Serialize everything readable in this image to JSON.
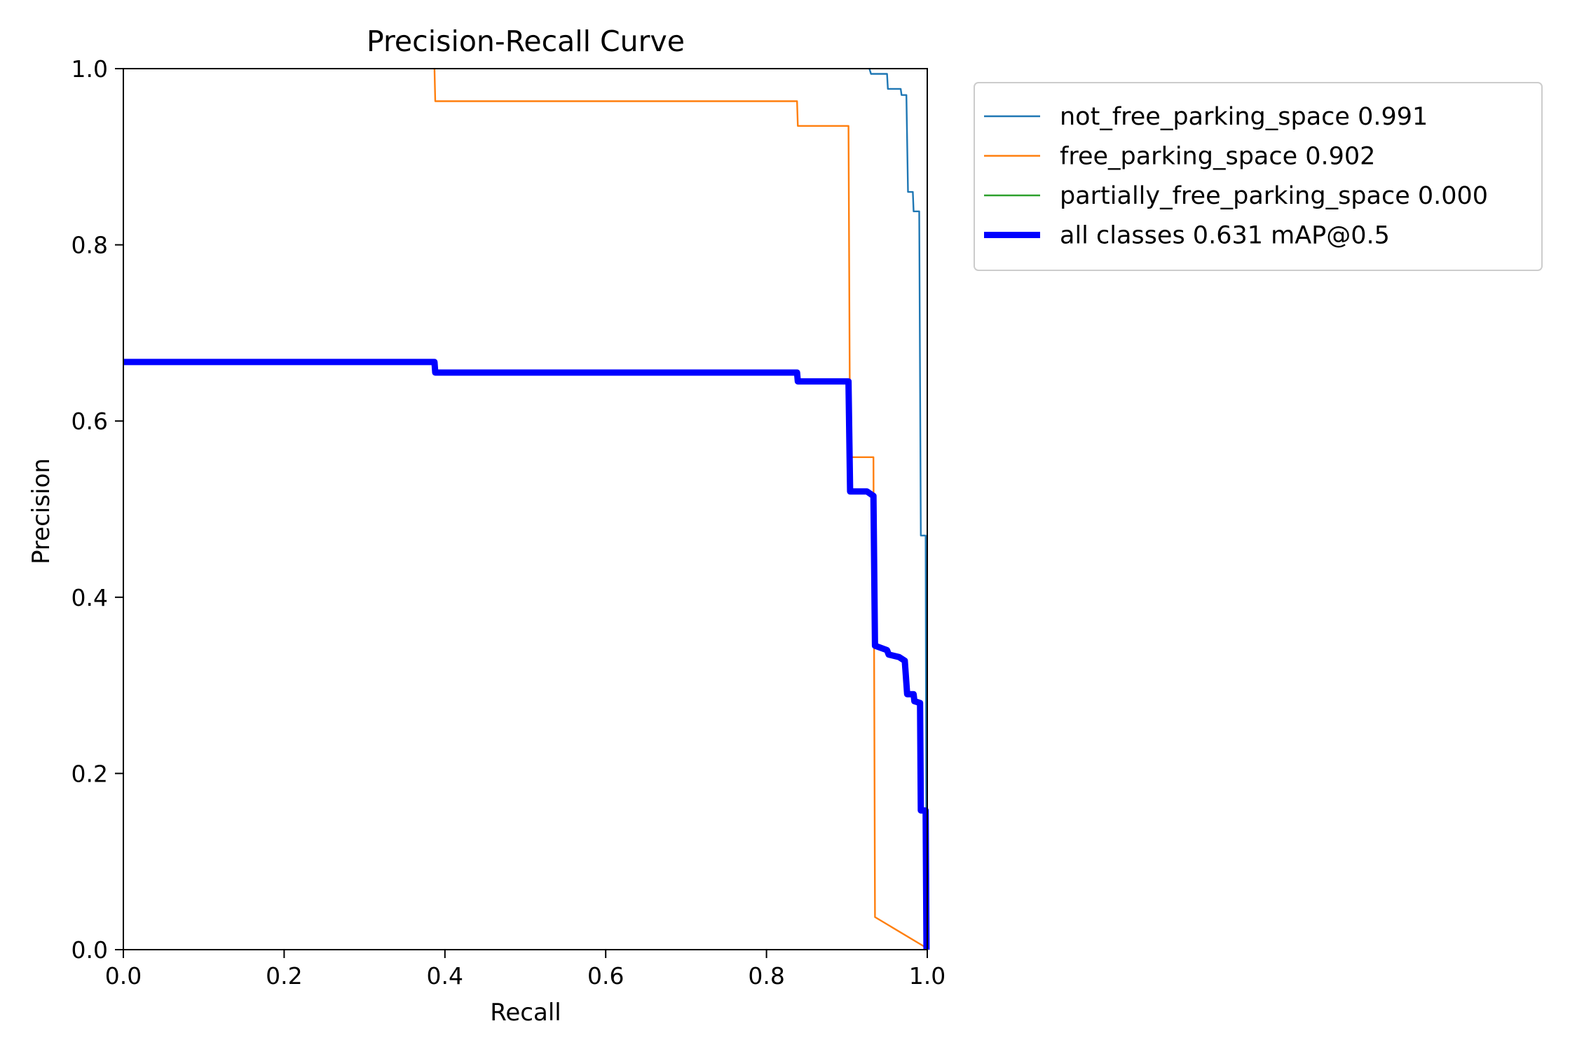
{
  "chart_data": {
    "type": "line",
    "title": "Precision-Recall Curve",
    "xlabel": "Recall",
    "ylabel": "Precision",
    "xlim": [
      0,
      1
    ],
    "ylim": [
      0,
      1
    ],
    "xticks": [
      "0.0",
      "0.2",
      "0.4",
      "0.6",
      "0.8",
      "1.0"
    ],
    "yticks": [
      "0.0",
      "0.2",
      "0.4",
      "0.6",
      "0.8",
      "1.0"
    ],
    "grid": false,
    "legend_position": "outside-top-right",
    "series": [
      {
        "name": "not_free_parking_space 0.991",
        "color": "#1f77b4",
        "style": "thin",
        "points": [
          [
            0.928,
            1.0
          ],
          [
            0.93,
            0.994
          ],
          [
            0.95,
            0.994
          ],
          [
            0.951,
            0.977
          ],
          [
            0.967,
            0.977
          ],
          [
            0.968,
            0.97
          ],
          [
            0.974,
            0.97
          ],
          [
            0.976,
            0.86
          ],
          [
            0.982,
            0.86
          ],
          [
            0.983,
            0.838
          ],
          [
            0.99,
            0.838
          ],
          [
            0.992,
            0.47
          ],
          [
            0.998,
            0.47
          ],
          [
            0.999,
            0.0
          ]
        ]
      },
      {
        "name": "free_parking_space 0.902",
        "color": "#ff7f0e",
        "style": "thin",
        "points": [
          [
            0.387,
            1.0
          ],
          [
            0.388,
            0.963
          ],
          [
            0.838,
            0.963
          ],
          [
            0.839,
            0.935
          ],
          [
            0.902,
            0.935
          ],
          [
            0.904,
            0.559
          ],
          [
            0.933,
            0.559
          ],
          [
            0.935,
            0.037
          ],
          [
            0.999,
            0.002
          ]
        ]
      },
      {
        "name": "partially_free_parking_space 0.000",
        "color": "#2ca02c",
        "style": "thin",
        "points": []
      },
      {
        "name": "all classes 0.631 mAP@0.5",
        "color": "#0000ff",
        "style": "thick",
        "points": [
          [
            0.0,
            0.667
          ],
          [
            0.387,
            0.667
          ],
          [
            0.388,
            0.655
          ],
          [
            0.838,
            0.655
          ],
          [
            0.839,
            0.645
          ],
          [
            0.902,
            0.645
          ],
          [
            0.904,
            0.52
          ],
          [
            0.925,
            0.52
          ],
          [
            0.933,
            0.515
          ],
          [
            0.935,
            0.345
          ],
          [
            0.95,
            0.34
          ],
          [
            0.952,
            0.335
          ],
          [
            0.965,
            0.332
          ],
          [
            0.972,
            0.328
          ],
          [
            0.975,
            0.29
          ],
          [
            0.983,
            0.29
          ],
          [
            0.984,
            0.282
          ],
          [
            0.991,
            0.28
          ],
          [
            0.992,
            0.158
          ],
          [
            0.998,
            0.158
          ],
          [
            0.999,
            0.0
          ]
        ]
      }
    ]
  }
}
